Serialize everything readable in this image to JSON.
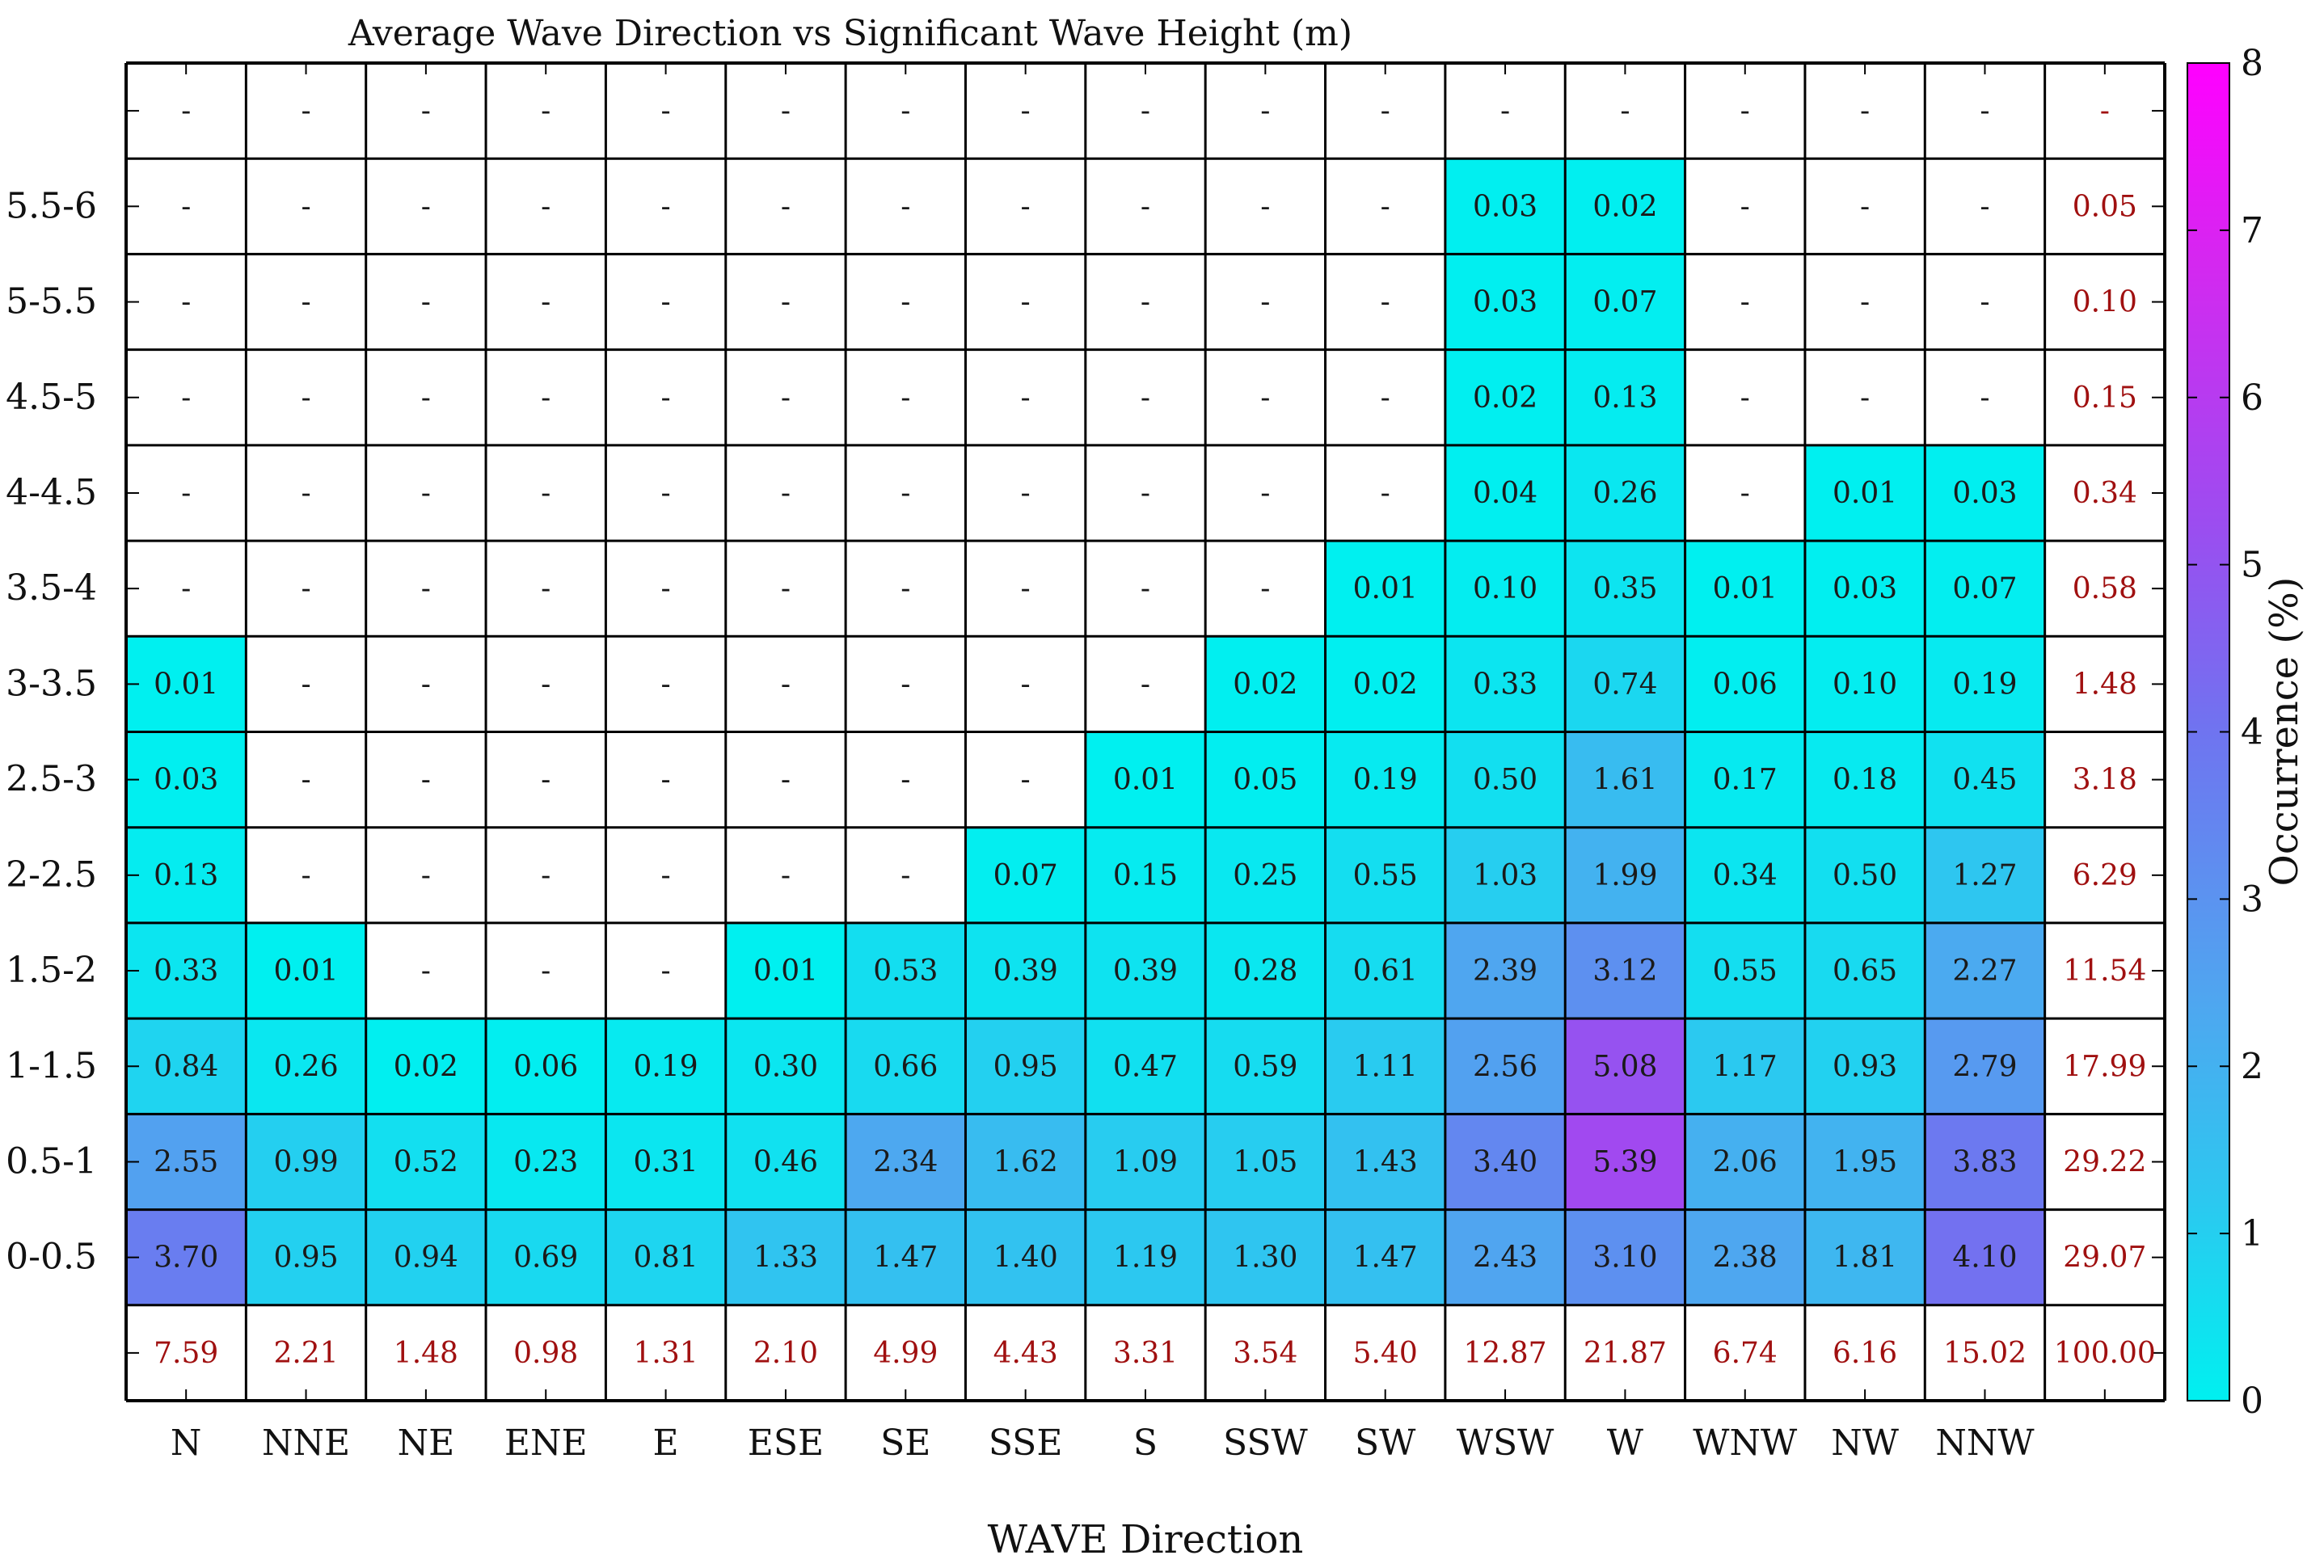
{
  "chart_data": {
    "type": "heatmap",
    "title": "Average Wave Direction vs Significant Wave Height (m)",
    "xlabel": "WAVE Direction",
    "ylabel": "",
    "colorbar_label": "Occurrence (%)",
    "colorbar_range": [
      0,
      8
    ],
    "colorbar_ticks": [
      "0",
      "1",
      "2",
      "3",
      "4",
      "5",
      "6",
      "7",
      "8"
    ],
    "colors": {
      "low": "#00f0f0",
      "mid": "#7e4ff0",
      "high": "#ff00ff",
      "total_text": "#a01010",
      "grid": "#000000"
    },
    "x_categories": [
      "N",
      "NNE",
      "NE",
      "ENE",
      "E",
      "ESE",
      "SE",
      "SSE",
      "S",
      "SSW",
      "SW",
      "WSW",
      "W",
      "WNW",
      "NW",
      "NNW"
    ],
    "rows": [
      {
        "label": "",
        "cells": [
          "-",
          "-",
          "-",
          "-",
          "-",
          "-",
          "-",
          "-",
          "-",
          "-",
          "-",
          "-",
          "-",
          "-",
          "-",
          "-"
        ],
        "total": "-"
      },
      {
        "label": "5.5-6",
        "cells": [
          "-",
          "-",
          "-",
          "-",
          "-",
          "-",
          "-",
          "-",
          "-",
          "-",
          "-",
          "0.03",
          "0.02",
          "-",
          "-",
          "-"
        ],
        "total": "0.05"
      },
      {
        "label": "5-5.5",
        "cells": [
          "-",
          "-",
          "-",
          "-",
          "-",
          "-",
          "-",
          "-",
          "-",
          "-",
          "-",
          "0.03",
          "0.07",
          "-",
          "-",
          "-"
        ],
        "total": "0.10"
      },
      {
        "label": "4.5-5",
        "cells": [
          "-",
          "-",
          "-",
          "-",
          "-",
          "-",
          "-",
          "-",
          "-",
          "-",
          "-",
          "0.02",
          "0.13",
          "-",
          "-",
          "-"
        ],
        "total": "0.15"
      },
      {
        "label": "4-4.5",
        "cells": [
          "-",
          "-",
          "-",
          "-",
          "-",
          "-",
          "-",
          "-",
          "-",
          "-",
          "-",
          "0.04",
          "0.26",
          "-",
          "0.01",
          "0.03"
        ],
        "total": "0.34"
      },
      {
        "label": "3.5-4",
        "cells": [
          "-",
          "-",
          "-",
          "-",
          "-",
          "-",
          "-",
          "-",
          "-",
          "-",
          "0.01",
          "0.10",
          "0.35",
          "0.01",
          "0.03",
          "0.07"
        ],
        "total": "0.58"
      },
      {
        "label": "3-3.5",
        "cells": [
          "0.01",
          "-",
          "-",
          "-",
          "-",
          "-",
          "-",
          "-",
          "-",
          "0.02",
          "0.02",
          "0.33",
          "0.74",
          "0.06",
          "0.10",
          "0.19"
        ],
        "total": "1.48"
      },
      {
        "label": "2.5-3",
        "cells": [
          "0.03",
          "-",
          "-",
          "-",
          "-",
          "-",
          "-",
          "-",
          "0.01",
          "0.05",
          "0.19",
          "0.50",
          "1.61",
          "0.17",
          "0.18",
          "0.45"
        ],
        "total": "3.18"
      },
      {
        "label": "2-2.5",
        "cells": [
          "0.13",
          "-",
          "-",
          "-",
          "-",
          "-",
          "-",
          "0.07",
          "0.15",
          "0.25",
          "0.55",
          "1.03",
          "1.99",
          "0.34",
          "0.50",
          "1.27"
        ],
        "total": "6.29"
      },
      {
        "label": "1.5-2",
        "cells": [
          "0.33",
          "0.01",
          "-",
          "-",
          "-",
          "0.01",
          "0.53",
          "0.39",
          "0.39",
          "0.28",
          "0.61",
          "2.39",
          "3.12",
          "0.55",
          "0.65",
          "2.27"
        ],
        "total": "11.54"
      },
      {
        "label": "1-1.5",
        "cells": [
          "0.84",
          "0.26",
          "0.02",
          "0.06",
          "0.19",
          "0.30",
          "0.66",
          "0.95",
          "0.47",
          "0.59",
          "1.11",
          "2.56",
          "5.08",
          "1.17",
          "0.93",
          "2.79"
        ],
        "total": "17.99"
      },
      {
        "label": "0.5-1",
        "cells": [
          "2.55",
          "0.99",
          "0.52",
          "0.23",
          "0.31",
          "0.46",
          "2.34",
          "1.62",
          "1.09",
          "1.05",
          "1.43",
          "3.40",
          "5.39",
          "2.06",
          "1.95",
          "3.83"
        ],
        "total": "29.22"
      },
      {
        "label": "0-0.5",
        "cells": [
          "3.70",
          "0.95",
          "0.94",
          "0.69",
          "0.81",
          "1.33",
          "1.47",
          "1.40",
          "1.19",
          "1.30",
          "1.47",
          "2.43",
          "3.10",
          "2.38",
          "1.81",
          "4.10"
        ],
        "total": "29.07"
      }
    ],
    "column_totals": [
      "7.59",
      "2.21",
      "1.48",
      "0.98",
      "1.31",
      "2.10",
      "4.99",
      "4.43",
      "3.31",
      "3.54",
      "5.40",
      "12.87",
      "21.87",
      "6.74",
      "6.16",
      "15.02"
    ],
    "grand_total": "100.00",
    "grid": true
  }
}
